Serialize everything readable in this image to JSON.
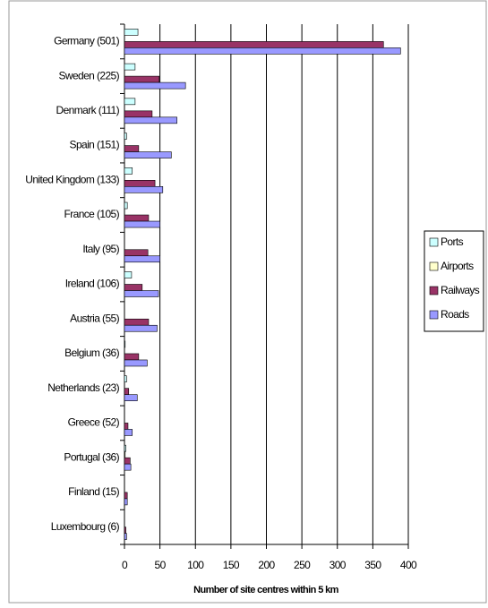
{
  "chart_data": {
    "type": "bar",
    "orientation": "horizontal",
    "x_label": "Number of site centres within 5 km",
    "categories": [
      "Germany (501)",
      "Sweden (225)",
      "Denmark (111)",
      "Spain (151)",
      "United Kingdom (133)",
      "France (105)",
      "Italy (95)",
      "Ireland (106)",
      "Austria (55)",
      "Belgium (36)",
      "Netherlands (23)",
      "Greece (52)",
      "Portugal (36)",
      "Finland (15)",
      "Luxembourg (6)"
    ],
    "series": [
      {
        "name": "Ports",
        "color": "#ccffff",
        "values": [
          19,
          15,
          15,
          3,
          11,
          4,
          0,
          10,
          0,
          1,
          3,
          0,
          2,
          0,
          0
        ]
      },
      {
        "name": "Airports",
        "color": "#ffffcc",
        "values": [
          0,
          0,
          0,
          0,
          0,
          0,
          0,
          0,
          0,
          0,
          0,
          0,
          1,
          0,
          0
        ]
      },
      {
        "name": "Railways",
        "color": "#993366",
        "values": [
          365,
          49,
          39,
          20,
          43,
          34,
          33,
          25,
          34,
          20,
          6,
          5,
          8,
          4,
          2
        ]
      },
      {
        "name": "Roads",
        "color": "#9999ff",
        "values": [
          389,
          86,
          74,
          66,
          54,
          50,
          50,
          48,
          46,
          32,
          18,
          11,
          9,
          4,
          3
        ]
      }
    ],
    "xlim": [
      0,
      400
    ],
    "xticks": [
      0,
      50,
      100,
      150,
      200,
      250,
      300,
      350,
      400
    ],
    "grid": true,
    "legend": "right"
  }
}
